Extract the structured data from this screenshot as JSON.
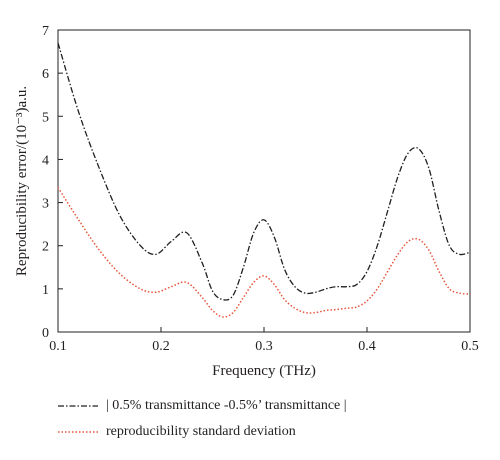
{
  "chart_data": {
    "type": "line",
    "xlabel": "Frequency (THz)",
    "ylabel": "Reproducibility error/(10⁻³)a.u.",
    "xlim": [
      0.1,
      0.5
    ],
    "ylim": [
      0,
      7
    ],
    "x_ticks": [
      "0.1",
      "0.2",
      "0.3",
      "0.4",
      "0.5"
    ],
    "y_ticks": [
      "0",
      "1",
      "2",
      "3",
      "4",
      "5",
      "6",
      "7"
    ],
    "grid": false,
    "legend_position": "below",
    "series": [
      {
        "name": "| 0.5% transmittance -0.5%’ transmittance |",
        "color": "#231f20",
        "style": "dash-dot",
        "x": [
          0.1,
          0.12,
          0.14,
          0.16,
          0.18,
          0.195,
          0.21,
          0.225,
          0.24,
          0.25,
          0.26,
          0.27,
          0.28,
          0.29,
          0.3,
          0.31,
          0.32,
          0.33,
          0.34,
          0.35,
          0.36,
          0.37,
          0.38,
          0.39,
          0.4,
          0.41,
          0.42,
          0.43,
          0.44,
          0.45,
          0.46,
          0.47,
          0.48,
          0.49,
          0.5
        ],
        "y": [
          6.7,
          5.1,
          3.8,
          2.7,
          2.0,
          1.8,
          2.1,
          2.3,
          1.6,
          0.95,
          0.75,
          0.85,
          1.5,
          2.3,
          2.6,
          2.2,
          1.45,
          1.05,
          0.9,
          0.92,
          1.0,
          1.05,
          1.05,
          1.1,
          1.4,
          2.0,
          2.8,
          3.6,
          4.15,
          4.25,
          3.8,
          2.8,
          2.0,
          1.8,
          1.85
        ]
      },
      {
        "name": "reproducibility standard deviation",
        "color": "#e8553a",
        "style": "dotted",
        "x": [
          0.1,
          0.12,
          0.14,
          0.16,
          0.18,
          0.195,
          0.21,
          0.225,
          0.24,
          0.25,
          0.26,
          0.27,
          0.28,
          0.29,
          0.3,
          0.31,
          0.32,
          0.33,
          0.34,
          0.35,
          0.36,
          0.37,
          0.38,
          0.39,
          0.4,
          0.41,
          0.42,
          0.43,
          0.44,
          0.45,
          0.46,
          0.47,
          0.48,
          0.49,
          0.5
        ],
        "y": [
          3.35,
          2.6,
          1.9,
          1.35,
          1.0,
          0.92,
          1.05,
          1.15,
          0.8,
          0.5,
          0.35,
          0.45,
          0.8,
          1.15,
          1.3,
          1.1,
          0.75,
          0.55,
          0.45,
          0.45,
          0.5,
          0.52,
          0.55,
          0.58,
          0.72,
          1.0,
          1.4,
          1.8,
          2.1,
          2.15,
          1.9,
          1.4,
          1.0,
          0.9,
          0.88
        ]
      }
    ]
  }
}
